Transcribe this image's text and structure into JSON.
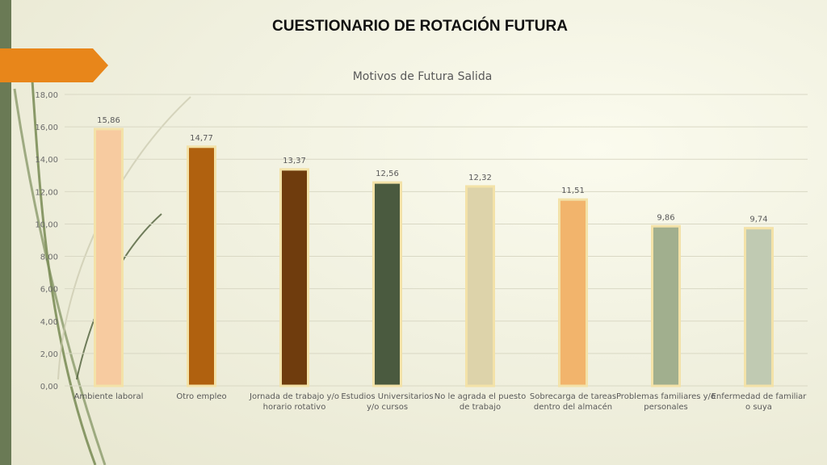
{
  "slide": {
    "title": "CUESTIONARIO DE ROTACIÓN FUTURA"
  },
  "colors": {
    "accent_orange": "#e8861a",
    "side_green": "#6a7a55"
  },
  "chart_data": {
    "type": "bar",
    "title": "Motivos de Futura Salida",
    "xlabel": "",
    "ylabel": "",
    "ylim": [
      0,
      18
    ],
    "yticks": [
      "0,00",
      "2,00",
      "4,00",
      "6,00",
      "8,00",
      "10,00",
      "12,00",
      "14,00",
      "16,00",
      "18,00"
    ],
    "grid": true,
    "categories": [
      [
        "Ambiente laboral"
      ],
      [
        "Otro empleo"
      ],
      [
        "Jornada de trabajo y/o",
        "horario rotativo"
      ],
      [
        "Estudios Universitarios",
        "y/o cursos"
      ],
      [
        "No le agrada el puesto",
        "de trabajo"
      ],
      [
        "Sobrecarga de tareas",
        "dentro del almacén"
      ],
      [
        "Problemas familiares y/o",
        "personales"
      ],
      [
        "Enfermedad de familiar",
        "o suya"
      ]
    ],
    "values": [
      15.86,
      14.77,
      13.37,
      12.56,
      12.32,
      11.51,
      9.86,
      9.74
    ],
    "value_labels": [
      "15,86",
      "14,77",
      "13,37",
      "12,56",
      "12,32",
      "11,51",
      "9,86",
      "9,74"
    ],
    "bar_colors": [
      "#f7cba0",
      "#b0610f",
      "#6f3c0d",
      "#4a5a3f",
      "#ddd3aa",
      "#f2b46c",
      "#a1af8e",
      "#c0cab2"
    ]
  }
}
